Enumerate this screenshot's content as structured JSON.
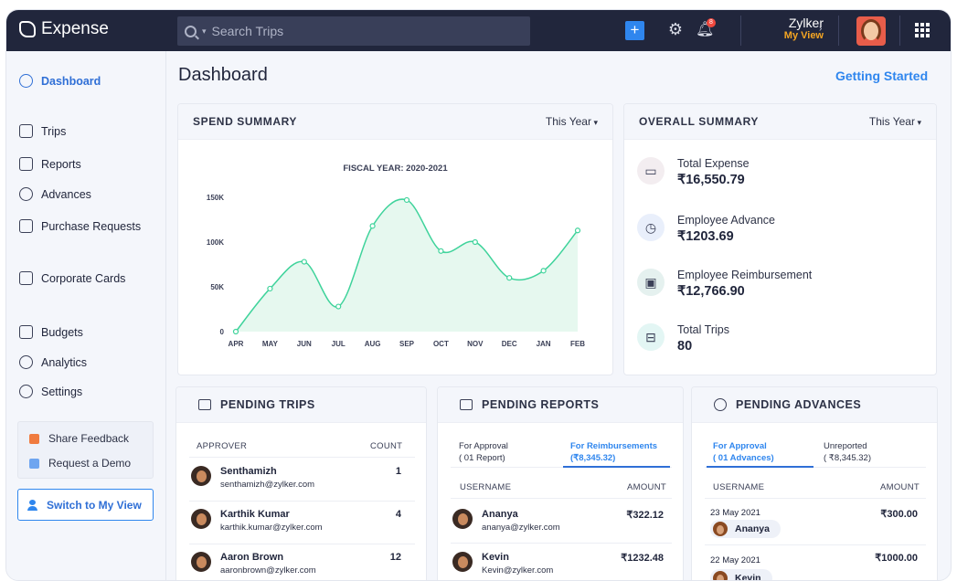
{
  "app": {
    "title": "Expense"
  },
  "search": {
    "placeholder": "Search Trips"
  },
  "header": {
    "org_name": "Zylker",
    "view_label": "My View",
    "notification_count": "8"
  },
  "sidebar": {
    "items": [
      {
        "label": "Dashboard"
      },
      {
        "label": "Trips"
      },
      {
        "label": "Reports"
      },
      {
        "label": "Advances"
      },
      {
        "label": "Purchase Requests"
      },
      {
        "label": "Corporate Cards"
      },
      {
        "label": "Budgets"
      },
      {
        "label": "Analytics"
      },
      {
        "label": "Settings"
      }
    ],
    "share_feedback": "Share Feedback",
    "request_demo": "Request a Demo",
    "switch_view": "Switch to My View"
  },
  "page": {
    "title": "Dashboard",
    "getting_started": "Getting Started"
  },
  "spend_summary": {
    "title": "SPEND SUMMARY",
    "period": "This Year"
  },
  "chart_data": {
    "type": "area",
    "title": "FISCAL YEAR: 2020-2021",
    "categories": [
      "APR",
      "MAY",
      "JUN",
      "JUL",
      "AUG",
      "SEP",
      "OCT",
      "NOV",
      "DEC",
      "JAN",
      "FEB"
    ],
    "values": [
      0,
      48000,
      78000,
      28000,
      118000,
      147000,
      90000,
      100000,
      60000,
      68000,
      113000
    ],
    "y_ticks": [
      "0",
      "50K",
      "100K",
      "150K"
    ],
    "ylim": [
      0,
      150000
    ],
    "colors": {
      "line": "#3fd39b",
      "fill": "#e6f8ef"
    }
  },
  "overall_summary": {
    "title": "OVERALL SUMMARY",
    "period": "This Year",
    "items": [
      {
        "label": "Total Expense",
        "value": "₹16,550.79",
        "icon": "wallet-icon"
      },
      {
        "label": "Employee Advance",
        "value": "₹1203.69",
        "icon": "clock-icon"
      },
      {
        "label": "Employee Reimbursement",
        "value": "₹12,766.90",
        "icon": "cash-icon"
      },
      {
        "label": "Total Trips",
        "value": "80",
        "icon": "briefcase-icon"
      }
    ]
  },
  "pending_trips": {
    "title": "PENDING TRIPS",
    "col_approver": "APPROVER",
    "col_count": "COUNT",
    "rows": [
      {
        "name": "Senthamizh",
        "email": "senthamizh@zylker.com",
        "count": "1"
      },
      {
        "name": "Karthik Kumar",
        "email": "karthik.kumar@zylker.com",
        "count": "4"
      },
      {
        "name": "Aaron Brown",
        "email": "aaronbrown@zylker.com",
        "count": "12"
      }
    ]
  },
  "pending_reports": {
    "title": "PENDING REPORTS",
    "tab1": {
      "line1": "For Approval",
      "line2": "( 01 Report)"
    },
    "tab2": {
      "line1": "For Reimbursements",
      "line2": "(₹8,345.32)"
    },
    "col_user": "USERNAME",
    "col_amount": "AMOUNT",
    "rows": [
      {
        "name": "Ananya",
        "email": "ananya@zylker.com",
        "amount": "₹322.12"
      },
      {
        "name": "Kevin",
        "email": "Kevin@zylker.com",
        "amount": "₹1232.48"
      }
    ]
  },
  "pending_advances": {
    "title": "PENDING ADVANCES",
    "tab1": {
      "line1": "For Approval",
      "line2": "( 01 Advances)"
    },
    "tab2": {
      "line1": "Unreported",
      "line2": "( ₹8,345.32)"
    },
    "col_user": "USERNAME",
    "col_amount": "AMOUNT",
    "rows": [
      {
        "date": "23 May 2021",
        "name": "Ananya",
        "amount": "₹300.00"
      },
      {
        "date": "22 May 2021",
        "name": "Kevin",
        "amount": "₹1000.00"
      }
    ]
  }
}
